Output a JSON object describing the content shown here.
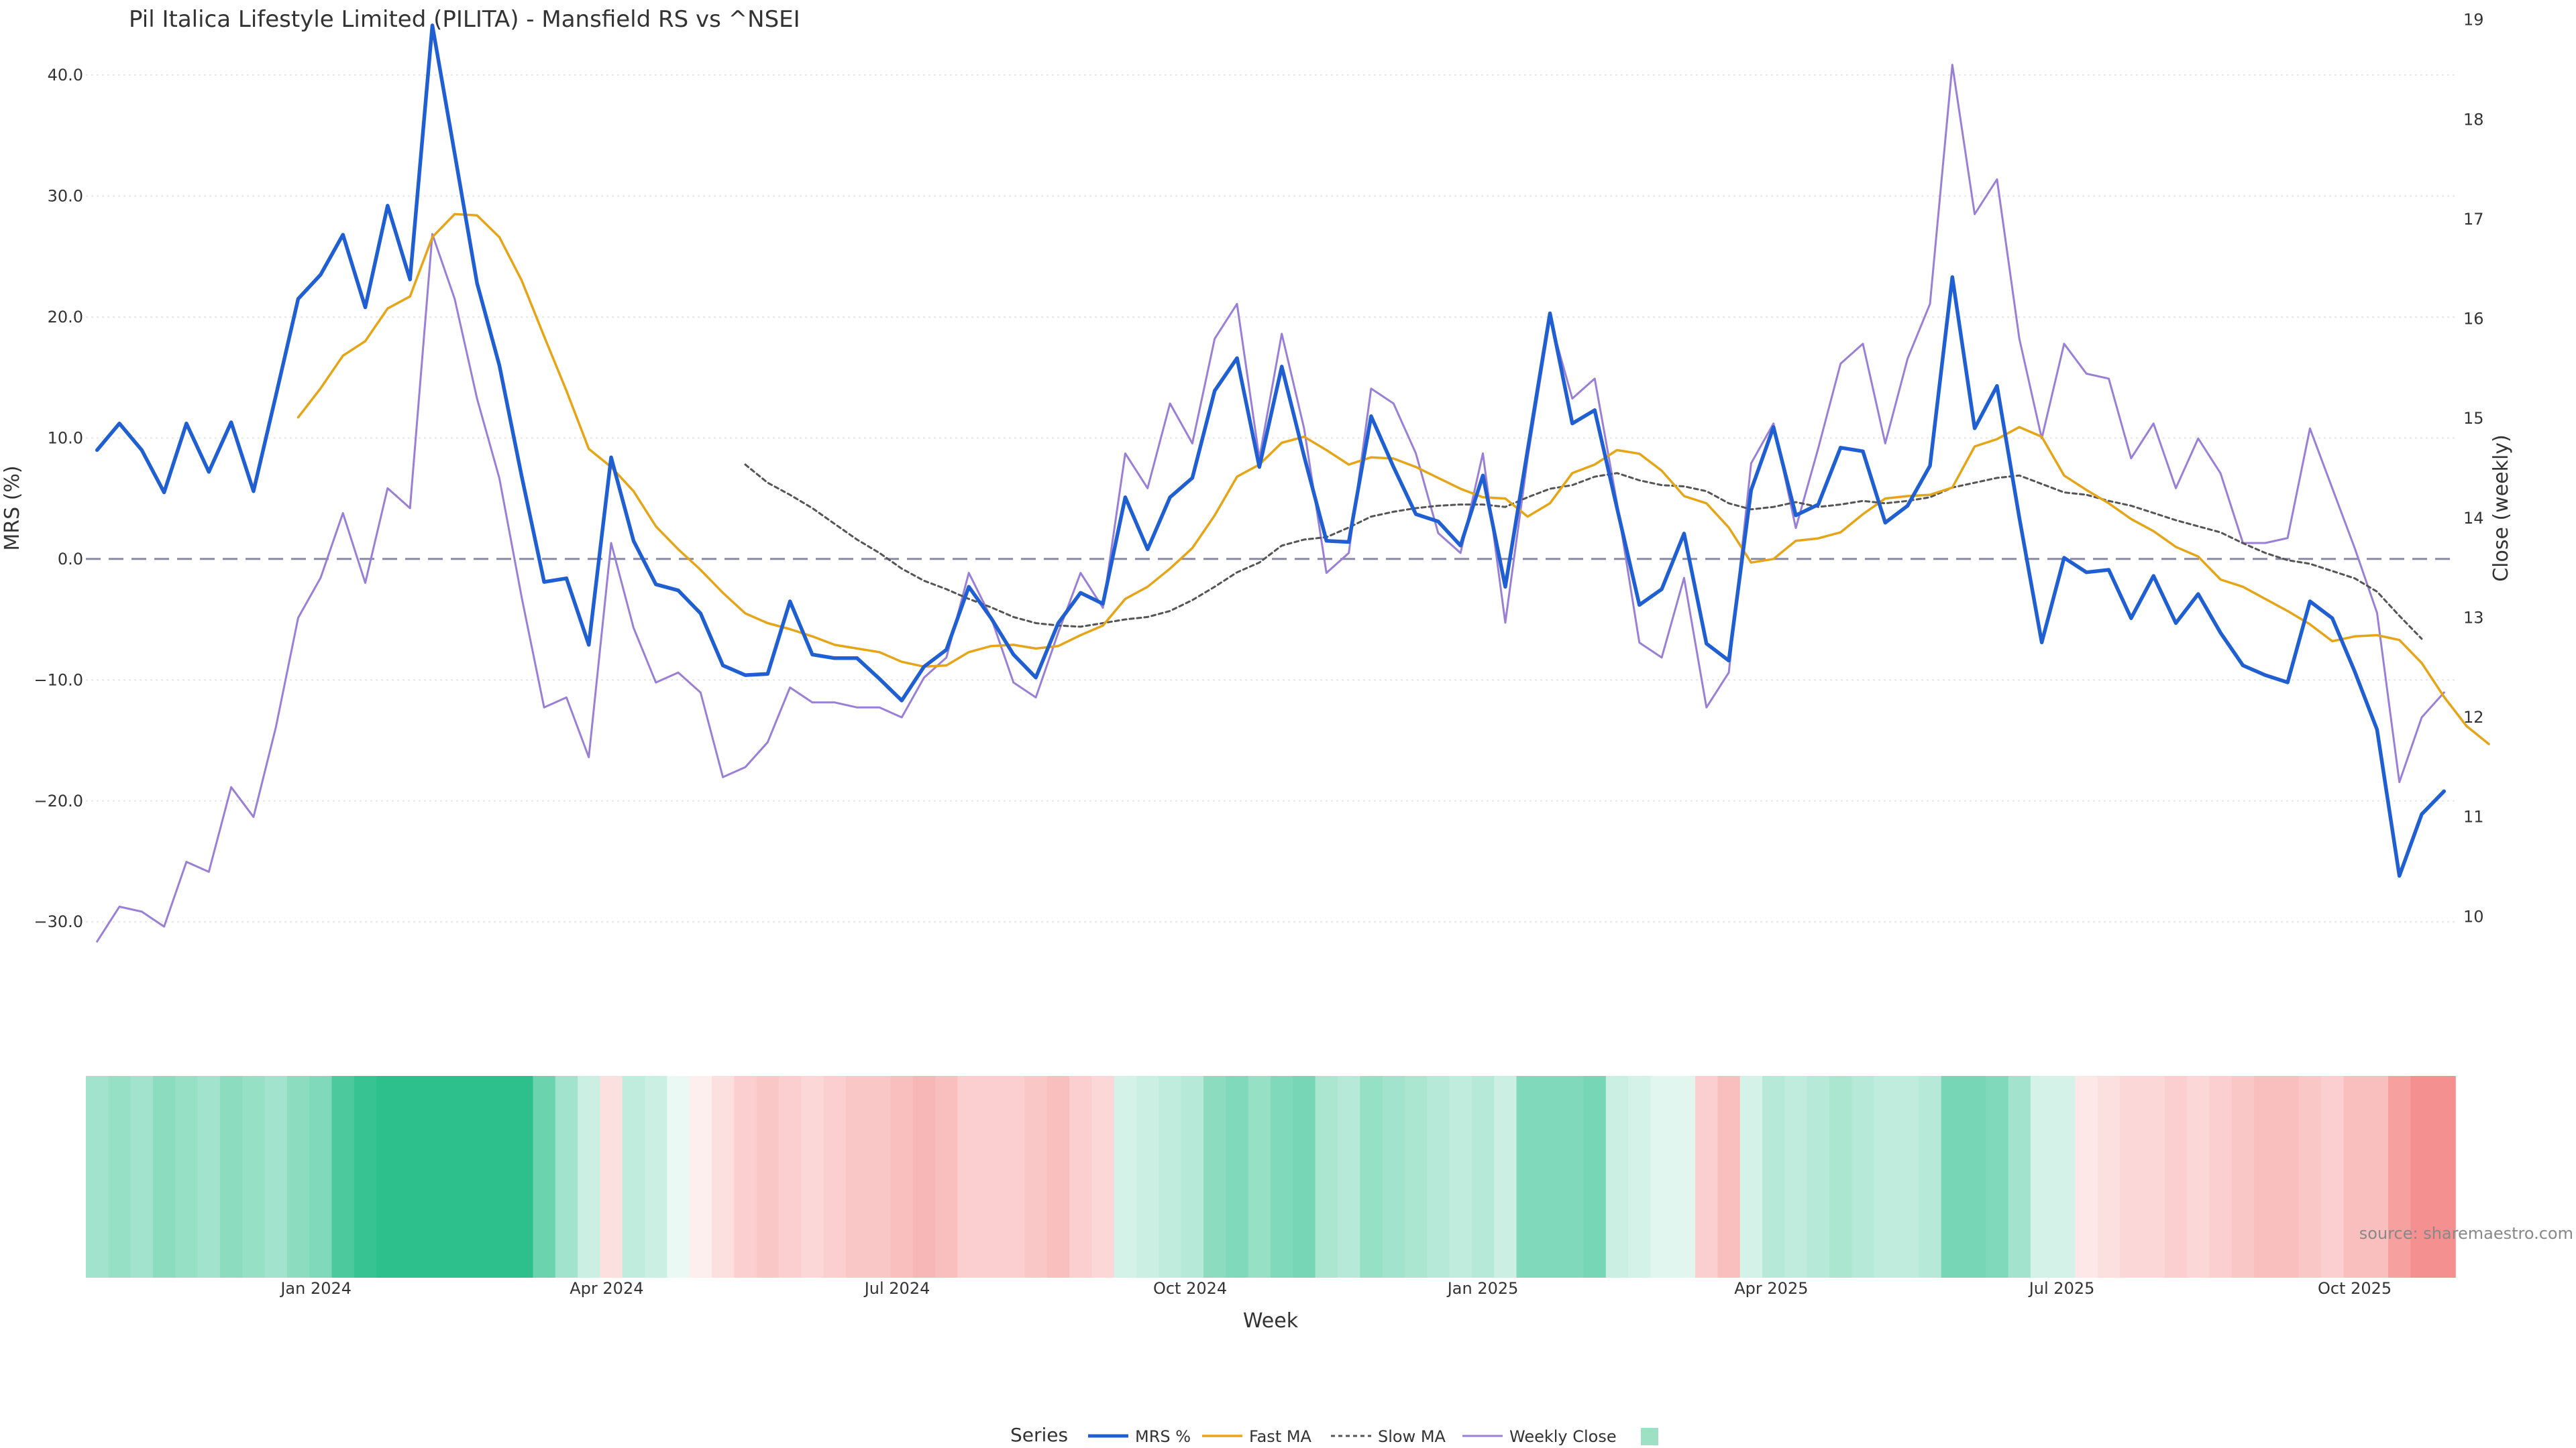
{
  "chart_data": {
    "type": "line",
    "title": "Pil Italica Lifestyle Limited (PILITA) - Mansfield RS vs ^NSEI",
    "xlabel": "Week",
    "ylabel": "MRS (%)",
    "y2label": "Close (weekly)",
    "ylim": [
      -37.8,
      46.2
    ],
    "y2lim": [
      9.0,
      19.2
    ],
    "yticks": [
      40,
      30,
      20,
      10,
      0,
      -10,
      -20,
      -30
    ],
    "ytick_labels": [
      "40.0",
      "30.0",
      "20.0",
      "10.0",
      "0.0",
      "−10.0",
      "−20.0",
      "−30.0"
    ],
    "y2ticks": [
      19,
      18,
      17,
      16,
      15,
      14,
      13,
      12,
      11,
      10
    ],
    "y2tick_labels": [
      "19",
      "18",
      "17",
      "16",
      "15",
      "14",
      "13",
      "12",
      "11",
      "10"
    ],
    "xlim": [
      -0.5,
      105.5
    ],
    "xticks": [
      {
        "label": "Jan 2024",
        "x": 9.8
      },
      {
        "label": "Apr 2024",
        "x": 22.8
      },
      {
        "label": "Jul 2024",
        "x": 35.8
      },
      {
        "label": "Oct 2024",
        "x": 48.9
      },
      {
        "label": "Jan 2025",
        "x": 62.0
      },
      {
        "label": "Apr 2025",
        "x": 74.9
      },
      {
        "label": "Jul 2025",
        "x": 87.9
      },
      {
        "label": "Oct 2025",
        "x": 101.0
      }
    ],
    "zero_line": 0,
    "source": "source: sharemaestro.com",
    "legend_title": "Series",
    "series": [
      {
        "name": "MRS %",
        "color": "#1f5fd1",
        "axis": "left",
        "style": "solid",
        "start": 0,
        "values": [
          9.0,
          11.2,
          9.0,
          5.5,
          11.2,
          7.2,
          11.3,
          5.6,
          13.5,
          21.5,
          23.5,
          26.8,
          20.8,
          29.2,
          23.1,
          44.1,
          33.5,
          22.8,
          16.0,
          6.8,
          -1.9,
          -1.6,
          -7.1,
          8.4,
          1.5,
          -2.1,
          -2.6,
          -4.5,
          -8.8,
          -9.6,
          -9.5,
          -3.5,
          -7.9,
          -8.2,
          -8.2,
          -9.9,
          -11.7,
          -8.9,
          -7.5,
          -2.3,
          -4.9,
          -7.9,
          -9.8,
          -5.3,
          -2.8,
          -3.7,
          5.1,
          0.8,
          5.1,
          6.7,
          13.9,
          16.6,
          7.6,
          15.9,
          8.5,
          1.5,
          1.4,
          11.8,
          7.6,
          3.7,
          3.1,
          1.1,
          6.9,
          -2.3,
          9.0,
          20.3,
          11.2,
          12.3,
          4.2,
          -3.8,
          -2.5,
          2.1,
          -7.0,
          -8.4,
          5.7,
          10.9,
          3.6,
          4.5,
          9.2,
          8.9,
          3.0,
          4.4,
          7.7,
          23.3,
          10.8,
          14.3,
          3.4,
          -6.9,
          0.1,
          -1.1,
          -0.9,
          -4.9,
          -1.4,
          -5.3,
          -2.9,
          -6.1,
          -8.8,
          -9.6,
          -10.2,
          -3.5,
          -4.9,
          -9.3,
          -14.1,
          -26.2,
          -21.1,
          -19.2
        ]
      },
      {
        "name": "Fast MA",
        "color": "#e6a417",
        "axis": "left",
        "style": "solid",
        "start": 9,
        "values": [
          11.7,
          14.1,
          16.8,
          18.0,
          20.7,
          21.7,
          26.6,
          28.5,
          28.4,
          26.6,
          23.0,
          18.4,
          13.9,
          9.1,
          7.6,
          5.6,
          2.7,
          0.8,
          -0.9,
          -2.8,
          -4.5,
          -5.3,
          -5.8,
          -6.4,
          -7.1,
          -7.4,
          -7.7,
          -8.5,
          -8.9,
          -8.8,
          -7.7,
          -7.2,
          -7.1,
          -7.4,
          -7.2,
          -6.3,
          -5.5,
          -3.3,
          -2.3,
          -0.8,
          0.9,
          3.6,
          6.8,
          7.8,
          9.6,
          10.1,
          9.0,
          7.8,
          8.4,
          8.3,
          7.6,
          6.7,
          5.8,
          5.1,
          5.0,
          3.5,
          4.6,
          7.1,
          7.8,
          9.0,
          8.7,
          7.3,
          5.2,
          4.6,
          2.6,
          -0.3,
          0.0,
          1.5,
          1.7,
          2.2,
          3.7,
          5.0,
          5.2,
          5.3,
          5.9,
          9.3,
          9.9,
          10.9,
          10.1,
          6.9,
          5.7,
          4.6,
          3.3,
          2.3,
          1.0,
          0.2,
          -1.7,
          -2.3,
          -3.3,
          -4.3,
          -5.4,
          -6.8,
          -6.4,
          -6.3,
          -6.7,
          -8.6,
          -11.4,
          -13.8,
          -15.3
        ]
      },
      {
        "name": "Slow MA",
        "color": "#555555",
        "axis": "left",
        "style": "dotted",
        "start": 29,
        "values": [
          7.8,
          6.3,
          5.3,
          4.2,
          2.9,
          1.6,
          0.5,
          -0.8,
          -1.8,
          -2.5,
          -3.3,
          -4.0,
          -4.8,
          -5.3,
          -5.5,
          -5.6,
          -5.3,
          -5.0,
          -4.8,
          -4.3,
          -3.4,
          -2.3,
          -1.1,
          -0.3,
          1.1,
          1.6,
          1.8,
          2.6,
          3.5,
          3.9,
          4.2,
          4.4,
          4.5,
          4.5,
          4.3,
          5.1,
          5.8,
          6.1,
          6.8,
          7.1,
          6.5,
          6.1,
          6.0,
          5.6,
          4.6,
          4.1,
          4.3,
          4.7,
          4.3,
          4.5,
          4.8,
          4.6,
          4.8,
          5.1,
          5.9,
          6.3,
          6.7,
          6.9,
          6.2,
          5.5,
          5.3,
          4.8,
          4.4,
          3.8,
          3.2,
          2.7,
          2.2,
          1.3,
          0.5,
          -0.1,
          -0.4,
          -1.0,
          -1.6,
          -2.7,
          -4.7,
          -6.6
        ]
      },
      {
        "name": "Weekly Close",
        "color": "#9a7fd6",
        "axis": "right",
        "style": "solid",
        "start": 0,
        "values": [
          9.75,
          10.1,
          10.05,
          9.9,
          10.55,
          10.45,
          11.3,
          11.0,
          11.9,
          13.0,
          13.4,
          14.05,
          13.35,
          14.3,
          14.1,
          16.85,
          16.2,
          15.2,
          14.4,
          13.2,
          12.1,
          12.2,
          11.6,
          13.75,
          12.9,
          12.35,
          12.45,
          12.25,
          11.4,
          11.5,
          11.75,
          12.3,
          12.15,
          12.15,
          12.1,
          12.1,
          12.0,
          12.4,
          12.6,
          13.45,
          13.0,
          12.35,
          12.2,
          12.85,
          13.45,
          13.1,
          14.65,
          14.3,
          15.15,
          14.75,
          15.8,
          16.15,
          14.6,
          15.85,
          14.9,
          13.45,
          13.65,
          15.3,
          15.15,
          14.65,
          13.85,
          13.65,
          14.65,
          12.95,
          14.6,
          16.0,
          15.2,
          15.4,
          14.15,
          12.75,
          12.6,
          13.4,
          12.1,
          12.45,
          14.55,
          14.95,
          13.9,
          14.7,
          15.55,
          15.75,
          14.75,
          15.6,
          16.15,
          18.55,
          17.05,
          17.4,
          15.8,
          14.8,
          15.75,
          15.45,
          15.4,
          14.6,
          14.95,
          14.3,
          14.8,
          14.45,
          13.75,
          13.75,
          13.8,
          14.9,
          14.3,
          13.7,
          13.05,
          11.35,
          12.0,
          12.25
        ]
      }
    ],
    "legend_entries": [
      "MRS %",
      "Fast MA",
      "Slow MA",
      "Weekly Close"
    ],
    "heatmap": {
      "description": "weekly relative-strength regime band",
      "values": [
        0.45,
        0.5,
        0.45,
        0.55,
        0.5,
        0.45,
        0.55,
        0.5,
        0.45,
        0.55,
        0.6,
        0.85,
        0.95,
        1.0,
        1.0,
        1.0,
        1.0,
        1.0,
        1.0,
        1.0,
        0.7,
        0.45,
        0.25,
        -0.2,
        0.3,
        0.25,
        0.1,
        -0.1,
        -0.2,
        -0.3,
        -0.35,
        -0.3,
        -0.25,
        -0.3,
        -0.35,
        -0.35,
        -0.4,
        -0.45,
        -0.4,
        -0.3,
        -0.3,
        -0.3,
        -0.35,
        -0.4,
        -0.3,
        -0.25,
        0.2,
        0.25,
        0.3,
        0.35,
        0.55,
        0.6,
        0.5,
        0.6,
        0.65,
        0.4,
        0.35,
        0.5,
        0.45,
        0.4,
        0.35,
        0.3,
        0.35,
        0.25,
        0.6,
        0.6,
        0.6,
        0.65,
        0.25,
        0.2,
        0.15,
        0.15,
        -0.3,
        -0.4,
        0.2,
        0.35,
        0.3,
        0.35,
        0.4,
        0.35,
        0.3,
        0.3,
        0.35,
        0.65,
        0.65,
        0.6,
        0.45,
        0.2,
        0.2,
        -0.15,
        -0.2,
        -0.25,
        -0.25,
        -0.3,
        -0.25,
        -0.3,
        -0.35,
        -0.4,
        -0.4,
        -0.35,
        -0.3,
        -0.4,
        -0.4,
        -0.6,
        -0.7,
        -0.7
      ],
      "positive_color": "#2dc08d",
      "negative_color": "#f06060"
    }
  }
}
